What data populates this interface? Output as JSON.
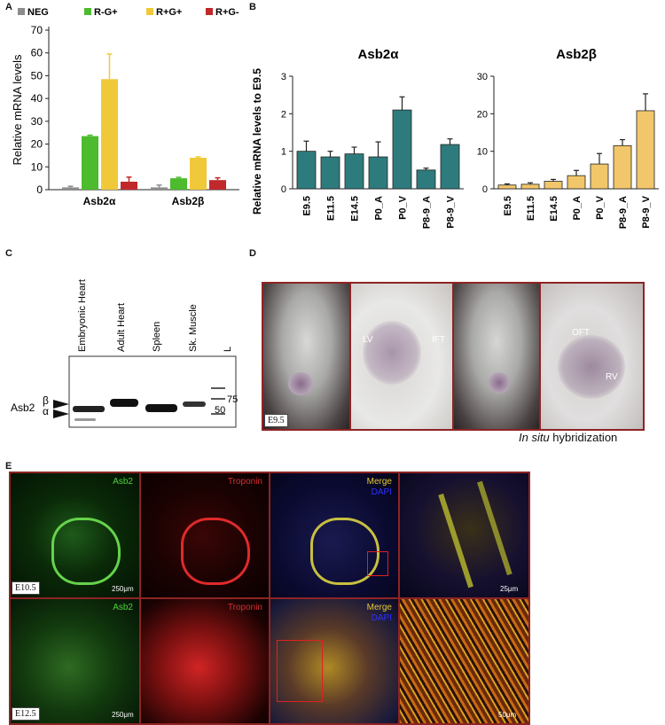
{
  "panels": {
    "A": "A",
    "B": "B",
    "C": "C",
    "D": "D",
    "E": "E"
  },
  "panelA": {
    "legend": [
      "NEG",
      "R-G+",
      "R+G+",
      "R+G-"
    ],
    "colors": [
      "#8c8c8c",
      "#4cbb2d",
      "#f0c93a",
      "#c0282b"
    ],
    "ylabel": "Relative mRNA levels",
    "yticks": [
      "0",
      "10",
      "20",
      "30",
      "40",
      "50",
      "60",
      "70"
    ]
  },
  "panelB": {
    "ylabel": "Relative mRNA levels to E9.5",
    "alpha": {
      "title": "Asb2α",
      "yticks": [
        "0",
        "1",
        "2",
        "3"
      ],
      "color": "#2e7b7d"
    },
    "beta": {
      "title": "Asb2β",
      "yticks": [
        "0",
        "10",
        "20",
        "30"
      ],
      "color": "#f2c66a"
    }
  },
  "panelC": {
    "lanes": [
      "Embryonic Heart",
      "Adult Heart",
      "Spleen",
      "Sk. Muscle",
      "L"
    ],
    "protein": "Asb2",
    "beta": "β",
    "alpha": "α",
    "mw75": "75",
    "mw50": "50"
  },
  "panelD": {
    "stage": "E9.5",
    "labels": [
      "LV",
      "IFT",
      "OFT",
      "RV"
    ],
    "caption_italic": "In situ",
    "caption_rest": " hybridization"
  },
  "panelE": {
    "row1": {
      "stage": "E10.5",
      "scale1": "250μm",
      "scale2": "25μm"
    },
    "row2": {
      "stage": "E12.5",
      "scale1": "250μm",
      "scale2": "50μm"
    },
    "asb2": "Asb2",
    "troponin": "Troponin",
    "merge": "Merge",
    "dapi": "DAPI"
  },
  "chart_data": [
    {
      "type": "bar",
      "ylabel": "Relative mRNA levels",
      "ylim": [
        0,
        70
      ],
      "categories": [
        "Asb2α",
        "Asb2β"
      ],
      "series": [
        {
          "name": "NEG",
          "values": [
            1,
            1
          ],
          "errors": [
            0.5,
            1
          ]
        },
        {
          "name": "R-G+",
          "values": [
            23.5,
            5
          ],
          "errors": [
            0.4,
            0.4
          ]
        },
        {
          "name": "R+G+",
          "values": [
            48.5,
            14
          ],
          "errors": [
            11,
            0.4
          ]
        },
        {
          "name": "R+G-",
          "values": [
            3.5,
            4.2
          ],
          "errors": [
            2,
            1
          ]
        }
      ]
    },
    {
      "type": "bar",
      "title": "Asb2α",
      "ylabel": "Relative mRNA levels to E9.5",
      "ylim": [
        0,
        3
      ],
      "categories": [
        "E9.5",
        "E11.5",
        "E14.5",
        "P0_A",
        "P0_V",
        "P8-9_A",
        "P8-9_V"
      ],
      "values": [
        1.0,
        0.85,
        0.93,
        0.85,
        2.1,
        0.5,
        1.18
      ],
      "errors": [
        0.27,
        0.15,
        0.18,
        0.4,
        0.35,
        0.05,
        0.15
      ]
    },
    {
      "type": "bar",
      "title": "Asb2β",
      "ylim": [
        0,
        30
      ],
      "categories": [
        "E9.5",
        "E11.5",
        "E14.5",
        "P0_A",
        "P0_V",
        "P8-9_A",
        "P8-9_V"
      ],
      "values": [
        1.0,
        1.2,
        2.0,
        3.5,
        6.6,
        11.5,
        20.8
      ],
      "errors": [
        0.3,
        0.4,
        0.5,
        1.4,
        2.8,
        1.6,
        4.5
      ]
    }
  ]
}
